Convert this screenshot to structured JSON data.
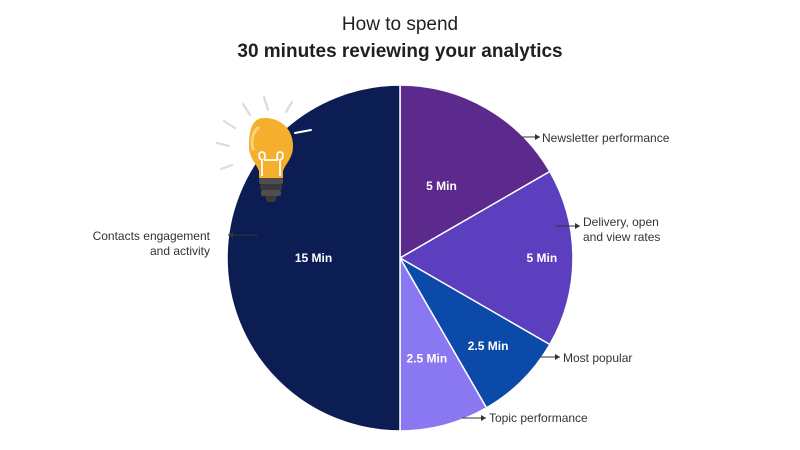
{
  "title_line1": "How to spend",
  "title_line2": "30 minutes reviewing your analytics",
  "decoration": {
    "icon": "lightbulb-icon"
  },
  "chart_data": {
    "type": "pie",
    "unit": "Min",
    "total": 30,
    "start": "12 o'clock, clockwise",
    "slices": [
      {
        "id": "newsletter",
        "value": 5,
        "label": "5 Min",
        "callout": [
          "Newsletter performance"
        ],
        "color": "#5b2a8c"
      },
      {
        "id": "delivery",
        "value": 5,
        "label": "5 Min",
        "callout": [
          "Delivery, open",
          "and view rates"
        ],
        "color": "#5c3fbf"
      },
      {
        "id": "popular",
        "value": 2.5,
        "label": "2.5 Min",
        "callout": [
          "Most popular"
        ],
        "color": "#0b4aa8"
      },
      {
        "id": "topic",
        "value": 2.5,
        "label": "2.5 Min",
        "callout": [
          "Topic performance"
        ],
        "color": "#8a78f2"
      },
      {
        "id": "contacts",
        "value": 15,
        "label": "15 Min",
        "callout": [
          "Contacts engagement",
          "and activity"
        ],
        "color": "#0c1d54"
      }
    ]
  }
}
